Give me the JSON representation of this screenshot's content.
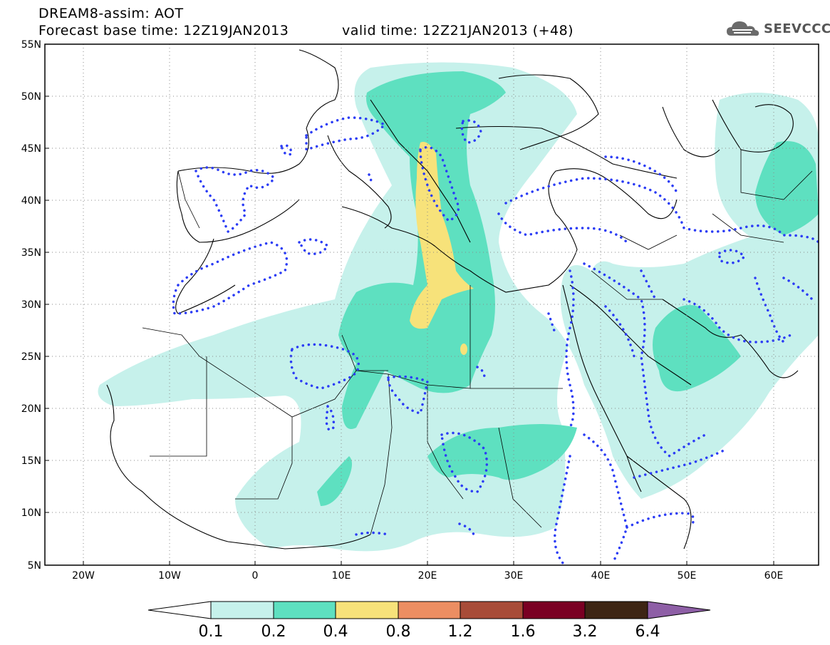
{
  "header": {
    "line1": "DREAM8-assim: AOT",
    "line2_left": "Forecast base time: 12Z19JAN2013",
    "line2_right": "valid time: 12Z21JAN2013 (+48)",
    "logo_text": "SEEVCCC"
  },
  "map": {
    "projection": "lat-lon",
    "lon_range": [
      -25,
      65
    ],
    "lat_range": [
      5,
      55
    ],
    "lat_labels": [
      "55N",
      "50N",
      "45N",
      "40N",
      "35N",
      "30N",
      "25N",
      "20N",
      "15N",
      "10N",
      "5N"
    ],
    "lon_labels": [
      "20W",
      "10W",
      "0",
      "10E",
      "20E",
      "30E",
      "40E",
      "50E",
      "60E"
    ],
    "grid": "dotted",
    "field": "Aerosol Optical Thickness",
    "shading_colors": {
      "0.1-0.2": "#c6f1eb",
      "0.2-0.4": "#5ee0c0",
      "0.4-0.8": "#f7e27a"
    },
    "contour_style": "blue dotted",
    "contour_color": "#2b3cf5"
  },
  "colorbar": {
    "labels": [
      "0.1",
      "0.2",
      "0.4",
      "0.8",
      "1.2",
      "1.6",
      "3.2",
      "6.4"
    ],
    "colors": [
      "#c6f1eb",
      "#5ee0c0",
      "#f7e27a",
      "#ec8e62",
      "#a84c38",
      "#7a0023",
      "#3d2514",
      "#8e5fa6"
    ],
    "under_color": "#ffffff",
    "over_color": "#8e5fa6"
  }
}
